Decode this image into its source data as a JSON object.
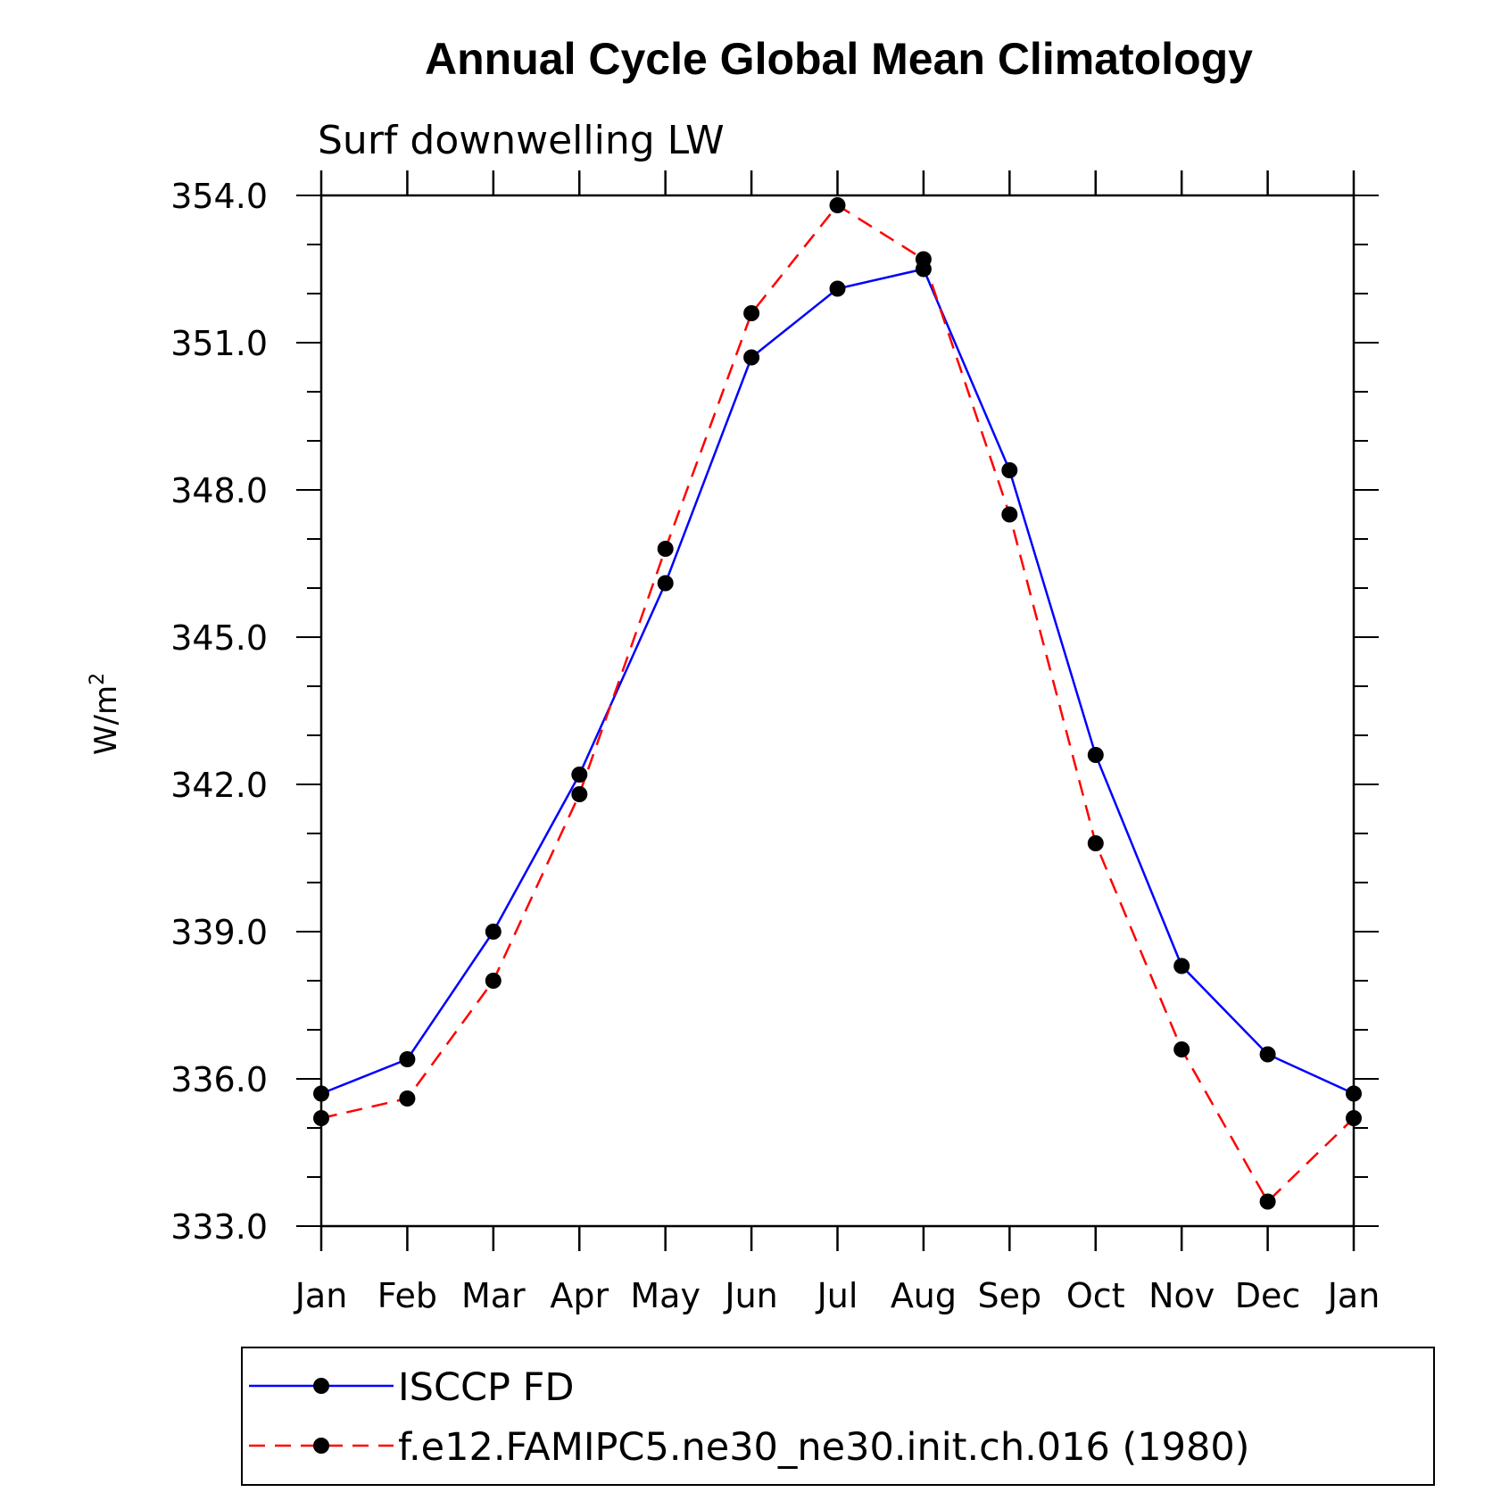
{
  "chart_data": {
    "type": "line",
    "title": "Annual Cycle Global Mean Climatology",
    "subtitle": "Surf downwelling LW",
    "ylabel": "W/m",
    "ylabel_sup": "2",
    "categories": [
      "Jan",
      "Feb",
      "Mar",
      "Apr",
      "May",
      "Jun",
      "Jul",
      "Aug",
      "Sep",
      "Oct",
      "Nov",
      "Dec",
      "Jan"
    ],
    "ylim": [
      333.0,
      354.0
    ],
    "yticks": [
      "354.0",
      "351.0",
      "348.0",
      "345.0",
      "342.0",
      "339.0",
      "336.0",
      "333.0"
    ],
    "ytick_values": [
      354.0,
      351.0,
      348.0,
      345.0,
      342.0,
      339.0,
      336.0,
      333.0
    ],
    "series": [
      {
        "name": "ISCCP FD",
        "color": "#0000ff",
        "dash": "solid",
        "values": [
          335.7,
          336.4,
          339.0,
          342.2,
          346.1,
          350.7,
          352.1,
          352.5,
          348.4,
          342.6,
          338.3,
          336.5,
          335.7
        ]
      },
      {
        "name": "f.e12.FAMIPC5.ne30_ne30.init.ch.016 (1980)",
        "color": "#ff0000",
        "dash": "dashed",
        "values": [
          335.2,
          335.6,
          338.0,
          341.8,
          346.8,
          351.6,
          353.8,
          352.7,
          347.5,
          340.8,
          336.6,
          333.5,
          335.2
        ]
      }
    ],
    "legend_position": "bottom"
  }
}
